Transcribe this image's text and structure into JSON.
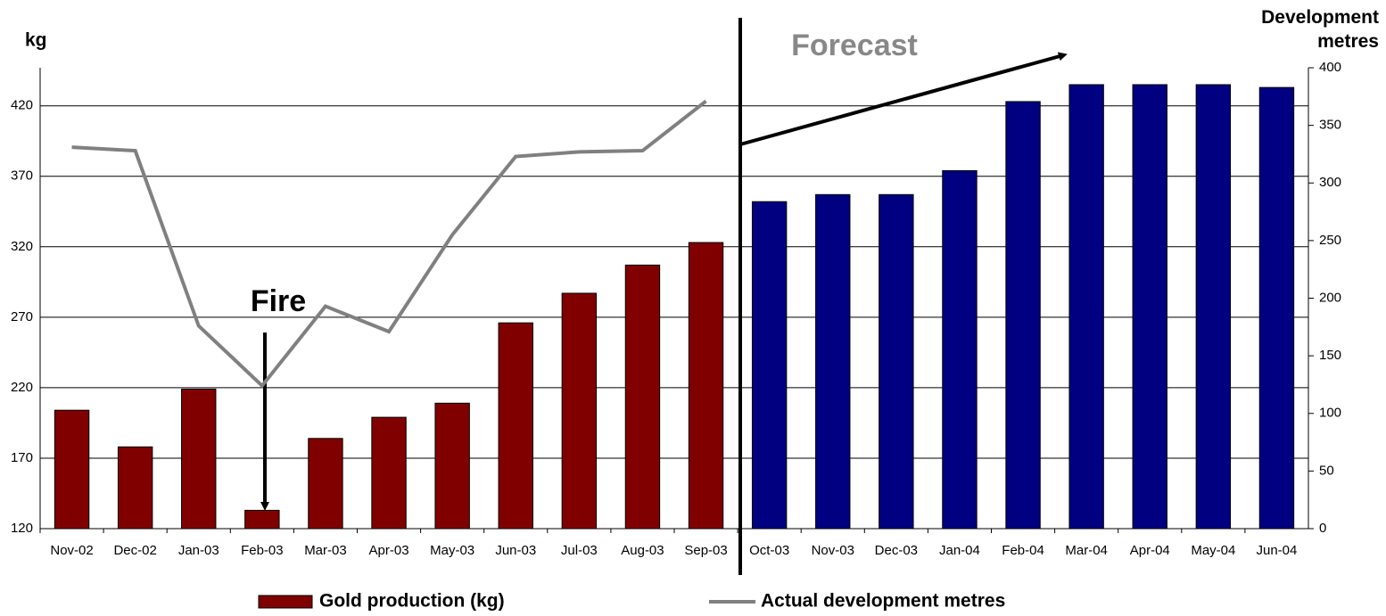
{
  "chart_data": {
    "type": "bar_line",
    "ylabel": "kg",
    "y2label": "Development metres",
    "annotations": [
      "Fire",
      "Forecast"
    ],
    "categories": [
      "Nov-02",
      "Dec-02",
      "Jan-03",
      "Feb-03",
      "Mar-03",
      "Apr-03",
      "May-03",
      "Jun-03",
      "Jul-03",
      "Aug-03",
      "Sep-03",
      "Oct-03",
      "Nov-03",
      "Dec-03",
      "Jan-04",
      "Feb-04",
      "Mar-04",
      "Apr-04",
      "May-04",
      "Jun-04"
    ],
    "series": [
      {
        "name": "Gold production (kg)",
        "type": "bar",
        "axis": "y",
        "colors": [
          "#800000",
          "#800000",
          "#800000",
          "#800000",
          "#800000",
          "#800000",
          "#800000",
          "#800000",
          "#800000",
          "#800000",
          "#800000",
          "#000080",
          "#000080",
          "#000080",
          "#000080",
          "#000080",
          "#000080",
          "#000080",
          "#000080",
          "#000080"
        ],
        "values": [
          204,
          178,
          219,
          133,
          184,
          199,
          209,
          266,
          287,
          307,
          323,
          352,
          357,
          357,
          374,
          423,
          435,
          435,
          435,
          433
        ]
      },
      {
        "name": "Actual development metres",
        "type": "line",
        "axis": "y2",
        "color": "#808080",
        "values": [
          331,
          328,
          176,
          124,
          193,
          171,
          255,
          323,
          327,
          328,
          371,
          null,
          null,
          null,
          null,
          null,
          null,
          null,
          null,
          null
        ]
      }
    ],
    "ylim": [
      120,
      447
    ],
    "yticks": [
      120,
      170,
      220,
      270,
      320,
      370,
      420
    ],
    "y2lim": [
      0,
      400
    ],
    "y2ticks": [
      0,
      50,
      100,
      150,
      200,
      250,
      300,
      350,
      400
    ],
    "grid": true
  }
}
